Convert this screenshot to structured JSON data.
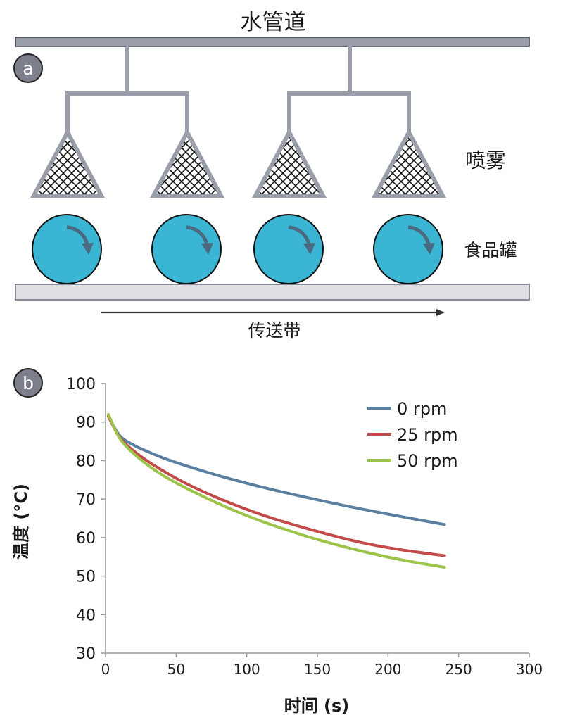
{
  "panel_a": {
    "badge": "a",
    "pipe_label": "水管道",
    "spray_label": "喷雾",
    "can_label": "食品罐",
    "conveyor_label": "传送带",
    "colors": {
      "pipe": "#9a9daa",
      "can": "#3ab5d3",
      "conveyor": "#e0e0e4",
      "arrow": "#4a6a80"
    }
  },
  "panel_b": {
    "badge": "b",
    "chart_data": {
      "type": "line",
      "xlabel": "时间 (s)",
      "ylabel": "温度 (°C)",
      "xlim": [
        0,
        300
      ],
      "ylim": [
        30,
        100
      ],
      "xticks": [
        0,
        50,
        100,
        150,
        200,
        250,
        300
      ],
      "yticks": [
        30,
        40,
        50,
        60,
        70,
        80,
        90,
        100
      ],
      "legend_position": "top-right",
      "grid": false,
      "x": [
        2,
        10,
        20,
        30,
        40,
        50,
        60,
        80,
        100,
        120,
        150,
        180,
        210,
        240
      ],
      "series": [
        {
          "name": "0 rpm",
          "color": "#5a7fa0",
          "values": [
            91.5,
            86.5,
            84.0,
            82.3,
            80.8,
            79.5,
            78.3,
            76.1,
            74.1,
            72.3,
            69.8,
            67.5,
            65.4,
            63.4
          ]
        },
        {
          "name": "25 rpm",
          "color": "#c24a48",
          "values": [
            91.5,
            86.0,
            82.5,
            79.8,
            77.5,
            75.4,
            73.5,
            70.2,
            67.3,
            64.8,
            61.6,
            58.8,
            56.8,
            55.3
          ]
        },
        {
          "name": "50 rpm",
          "color": "#9cc44a",
          "values": [
            92.0,
            85.8,
            81.8,
            78.8,
            76.3,
            74.2,
            72.3,
            68.8,
            65.7,
            63.0,
            59.5,
            56.6,
            54.2,
            52.3
          ]
        }
      ]
    }
  }
}
